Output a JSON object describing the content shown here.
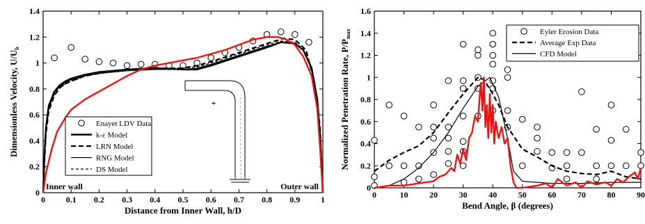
{
  "chart_data": [
    {
      "type": "line",
      "title": "",
      "xlabel": "Distance from Inner Wall, h/D",
      "ylabel_main": "Dimensionless Velocity, U/U",
      "ylabel_sub": "b",
      "xlim": [
        0,
        1
      ],
      "ylim": [
        0,
        1.4
      ],
      "xticks": [
        "0",
        "0.1",
        "0.2",
        "0.3",
        "0.4",
        "0.5",
        "0.6",
        "0.7",
        "0.8",
        "0.9",
        "1"
      ],
      "yticks": [
        "0",
        "0.2",
        "0.4",
        "0.6",
        "0.8",
        "1",
        "1.2",
        "1.4"
      ],
      "annotations": {
        "inner": "Inner wall",
        "outer": "Outer wall"
      },
      "legend_placement": "bottom-left",
      "series": [
        {
          "name": "Enayet LDV Data",
          "style": "circle-markers",
          "x": [
            0.04,
            0.1,
            0.15,
            0.2,
            0.25,
            0.3,
            0.35,
            0.4,
            0.45,
            0.5,
            0.55,
            0.6,
            0.65,
            0.7,
            0.75,
            0.8,
            0.85,
            0.9,
            0.95
          ],
          "y": [
            1.04,
            1.12,
            1.03,
            1.01,
            1.0,
            0.98,
            0.99,
            0.99,
            0.98,
            0.98,
            1.0,
            1.04,
            1.08,
            1.12,
            1.17,
            1.22,
            1.24,
            1.22,
            1.16
          ]
        },
        {
          "name": "k-ε Model",
          "style": "thick-solid",
          "x": [
            0,
            0.005,
            0.01,
            0.02,
            0.04,
            0.06,
            0.08,
            0.1,
            0.15,
            0.2,
            0.3,
            0.4,
            0.5,
            0.55,
            0.6,
            0.7,
            0.8,
            0.85,
            0.9,
            0.93,
            0.96,
            0.98,
            0.99,
            1.0
          ],
          "y": [
            0,
            0.3,
            0.5,
            0.67,
            0.78,
            0.83,
            0.86,
            0.88,
            0.91,
            0.93,
            0.95,
            0.96,
            0.95,
            0.95,
            0.98,
            1.05,
            1.12,
            1.16,
            1.15,
            1.1,
            0.96,
            0.72,
            0.45,
            0
          ]
        },
        {
          "name": "LRN Model",
          "style": "thick-dashed",
          "x": [
            0,
            0.005,
            0.01,
            0.02,
            0.04,
            0.06,
            0.08,
            0.1,
            0.15,
            0.2,
            0.3,
            0.4,
            0.5,
            0.55,
            0.6,
            0.7,
            0.8,
            0.86,
            0.9,
            0.94,
            0.97,
            0.99,
            1.0
          ],
          "y": [
            0,
            0.25,
            0.45,
            0.63,
            0.75,
            0.81,
            0.84,
            0.86,
            0.9,
            0.92,
            0.95,
            0.96,
            0.96,
            0.98,
            1.01,
            1.08,
            1.15,
            1.19,
            1.18,
            1.1,
            0.85,
            0.5,
            0
          ]
        },
        {
          "name": "RNG Model",
          "style": "thin-solid",
          "x": [
            0,
            0.005,
            0.01,
            0.02,
            0.04,
            0.06,
            0.08,
            0.1,
            0.15,
            0.2,
            0.3,
            0.4,
            0.5,
            0.55,
            0.6,
            0.7,
            0.8,
            0.85,
            0.9,
            0.93,
            0.96,
            0.98,
            0.99,
            1.0
          ],
          "y": [
            0,
            0.28,
            0.48,
            0.65,
            0.77,
            0.82,
            0.85,
            0.87,
            0.9,
            0.92,
            0.94,
            0.95,
            0.95,
            0.96,
            0.99,
            1.06,
            1.13,
            1.16,
            1.15,
            1.1,
            0.95,
            0.7,
            0.42,
            0
          ]
        },
        {
          "name": "DS Model",
          "style": "thin-dashed",
          "x": [
            0,
            0.005,
            0.01,
            0.02,
            0.04,
            0.06,
            0.08,
            0.1,
            0.15,
            0.2,
            0.3,
            0.4,
            0.5,
            0.55,
            0.6,
            0.7,
            0.8,
            0.85,
            0.9,
            0.93,
            0.96,
            0.98,
            0.99,
            1.0
          ],
          "y": [
            0,
            0.26,
            0.46,
            0.64,
            0.76,
            0.81,
            0.84,
            0.86,
            0.9,
            0.92,
            0.95,
            0.96,
            0.96,
            0.97,
            1.0,
            1.07,
            1.14,
            1.17,
            1.16,
            1.11,
            0.97,
            0.73,
            0.45,
            0
          ]
        },
        {
          "name": "",
          "style": "red",
          "x": [
            0,
            0.01,
            0.03,
            0.05,
            0.08,
            0.1,
            0.15,
            0.2,
            0.25,
            0.3,
            0.35,
            0.4,
            0.45,
            0.5,
            0.55,
            0.6,
            0.65,
            0.7,
            0.75,
            0.8,
            0.84,
            0.87,
            0.9,
            0.93,
            0.96,
            0.98,
            0.99,
            1.0
          ],
          "y": [
            0,
            0.15,
            0.33,
            0.47,
            0.58,
            0.64,
            0.72,
            0.78,
            0.84,
            0.9,
            0.95,
            0.98,
            1.0,
            1.02,
            1.04,
            1.07,
            1.1,
            1.14,
            1.18,
            1.2,
            1.2,
            1.18,
            1.14,
            1.05,
            0.9,
            0.65,
            0.35,
            0
          ]
        }
      ]
    },
    {
      "type": "line",
      "title": "",
      "xlabel": "Bend Angle, β (degrees)",
      "ylabel_main": "Normalized Penetration Rate, P/P",
      "ylabel_sub": "max",
      "xlim": [
        0,
        90
      ],
      "ylim": [
        0,
        1.6
      ],
      "xticks": [
        "0",
        "10",
        "20",
        "30",
        "40",
        "50",
        "60",
        "70",
        "80",
        "90"
      ],
      "yticks": [
        "0",
        "0.2",
        "0.4",
        "0.6",
        "0.8",
        "1",
        "1.2",
        "1.4",
        "1.6"
      ],
      "legend_placement": "top-right",
      "series": [
        {
          "name": "Eyler Erosion Data",
          "style": "circle-markers",
          "x": [
            0,
            0,
            0,
            5,
            5,
            10,
            10,
            10,
            15,
            15,
            15,
            20,
            20,
            20,
            20,
            20,
            25,
            25,
            25,
            25,
            25,
            30,
            30,
            30,
            30,
            30,
            30,
            30,
            35,
            35,
            35,
            35,
            35,
            40,
            40,
            40,
            40,
            40,
            40,
            40,
            45,
            45,
            45,
            45,
            50,
            50,
            55,
            55,
            55,
            60,
            60,
            65,
            65,
            65,
            70,
            70,
            75,
            75,
            75,
            80,
            80,
            80,
            85,
            85,
            90,
            90
          ],
          "y": [
            0.43,
            0.1,
            0.02,
            0.75,
            0.2,
            0.65,
            0.2,
            0.05,
            0.55,
            0.2,
            0.08,
            0.75,
            0.55,
            0.45,
            0.32,
            0.12,
            0.97,
            0.55,
            0.45,
            0.33,
            0.22,
            1.3,
            0.97,
            0.9,
            0.65,
            0.42,
            0.33,
            0.2,
            1.25,
            1.2,
            1.0,
            0.9,
            0.65,
            1.4,
            1.3,
            1.2,
            1.12,
            0.97,
            0.9,
            0.7,
            1.07,
            1.0,
            0.7,
            0.55,
            0.62,
            0.2,
            0.55,
            0.45,
            0.33,
            0.32,
            0.18,
            0.32,
            0.2,
            0.08,
            0.87,
            0.32,
            0.53,
            0.2,
            0.08,
            0.75,
            0.43,
            0.2,
            0.53,
            0.2,
            0.32,
            0.2
          ]
        },
        {
          "name": "Average Exp Data",
          "style": "thick-dashed",
          "x": [
            0,
            5,
            10,
            15,
            20,
            25,
            30,
            35,
            37,
            40,
            42,
            45,
            50,
            55,
            60,
            65,
            70,
            75,
            80,
            85,
            90
          ],
          "y": [
            0.15,
            0.25,
            0.32,
            0.38,
            0.5,
            0.68,
            0.85,
            1.0,
            0.98,
            0.85,
            0.75,
            0.55,
            0.35,
            0.28,
            0.2,
            0.15,
            0.13,
            0.12,
            0.15,
            0.1,
            0.08
          ]
        },
        {
          "name": "CFD Model",
          "style": "thin-solid",
          "x": [
            0,
            5,
            10,
            15,
            20,
            25,
            30,
            35,
            39,
            42,
            45,
            47,
            50,
            55,
            60,
            70,
            80,
            90
          ],
          "y": [
            0.0,
            0.02,
            0.08,
            0.18,
            0.32,
            0.5,
            0.72,
            0.92,
            1.0,
            0.82,
            0.45,
            0.15,
            0.06,
            0.05,
            0.04,
            0.04,
            0.05,
            0.05
          ]
        },
        {
          "name": "",
          "style": "red",
          "x": [
            0,
            5,
            10,
            15,
            20,
            22,
            24,
            26,
            27,
            28,
            29,
            30,
            31,
            32,
            33,
            34,
            35,
            35.5,
            36,
            36.5,
            37,
            37.5,
            38,
            38.5,
            39,
            39.5,
            40,
            40.5,
            41,
            42,
            43,
            44,
            45,
            46,
            47,
            48,
            50,
            55,
            58,
            60,
            62,
            65,
            68,
            70,
            72,
            75,
            78,
            80,
            82,
            84,
            86,
            88,
            89,
            90
          ],
          "y": [
            0.0,
            0.02,
            0.02,
            0.04,
            0.06,
            0.1,
            0.12,
            0.18,
            0.15,
            0.3,
            0.22,
            0.35,
            0.25,
            0.45,
            0.5,
            0.65,
            0.6,
            0.8,
            0.95,
            0.7,
            1.0,
            0.55,
            0.75,
            0.45,
            0.85,
            0.5,
            0.75,
            0.4,
            0.6,
            0.45,
            0.55,
            0.4,
            0.45,
            0.2,
            0.05,
            0.0,
            0.0,
            0.02,
            0.04,
            0.0,
            0.08,
            0.02,
            0.05,
            0.0,
            0.06,
            0.03,
            0.05,
            0.02,
            0.08,
            0.05,
            0.1,
            0.14,
            0.08,
            0.18
          ]
        }
      ]
    }
  ]
}
